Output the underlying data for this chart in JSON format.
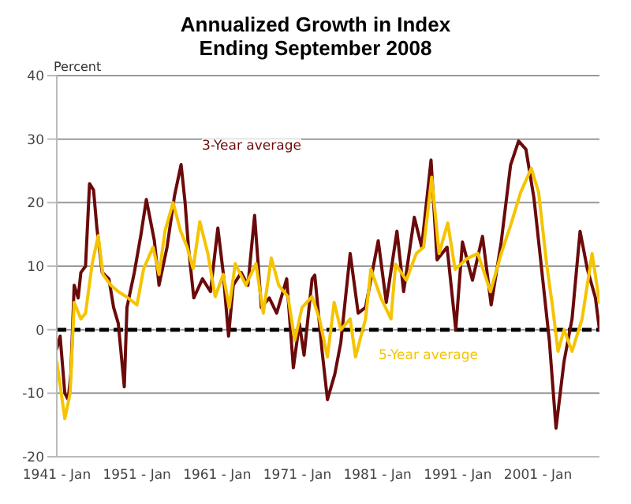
{
  "chart_data": {
    "type": "line",
    "title": "Annualized Growth in Index",
    "subtitle": "Ending September 2008",
    "ylabel": "Percent",
    "xlim": [
      "1941-01",
      "2008-09"
    ],
    "xticks": [
      {
        "value": "1941-01",
        "label": "1941 - Jan"
      },
      {
        "value": "1951-01",
        "label": "1951 - Jan"
      },
      {
        "value": "1961-01",
        "label": "1961 - Jan"
      },
      {
        "value": "1971-01",
        "label": "1971 - Jan"
      },
      {
        "value": "1981-01",
        "label": "1981 - Jan"
      },
      {
        "value": "1991-01",
        "label": "1991 - Jan"
      },
      {
        "value": "2001-01",
        "label": "2001 - Jan"
      }
    ],
    "ylim": [
      -20,
      40
    ],
    "yticks": [
      -20,
      -10,
      0,
      10,
      20,
      30,
      40
    ],
    "grid": "y",
    "legend": false,
    "marker": "none",
    "line_style": "solid",
    "ref_lines": [
      {
        "axis": "y",
        "value": 0,
        "color": "#000000",
        "line_style": "dashed"
      }
    ],
    "series": [
      {
        "name": "3-Year average",
        "color": "#6b0a0a",
        "x": [
          "1941-01",
          "1941-06",
          "1942-01",
          "1942-06",
          "1942-10",
          "1943-03",
          "1943-09",
          "1944-01",
          "1944-08",
          "1945-02",
          "1945-08",
          "1946-01",
          "1946-09",
          "1947-07",
          "1948-02",
          "1948-09",
          "1949-06",
          "1949-10",
          "1950-09",
          "1951-07",
          "1952-03",
          "1953-03",
          "1953-10",
          "1954-10",
          "1955-09",
          "1956-07",
          "1957-01",
          "1957-06",
          "1958-02",
          "1959-03",
          "1960-03",
          "1961-02",
          "1961-10",
          "1962-06",
          "1963-01",
          "1964-01",
          "1964-11",
          "1965-09",
          "1966-07",
          "1967-07",
          "1968-06",
          "1969-09",
          "1970-07",
          "1971-04",
          "1971-11",
          "1972-11",
          "1973-03",
          "1974-02",
          "1974-10",
          "1975-09",
          "1976-06",
          "1977-08",
          "1978-08",
          "1979-07",
          "1981-02",
          "1982-02",
          "1983-06",
          "1984-04",
          "1985-08",
          "1986-07",
          "1987-09",
          "1988-06",
          "1989-09",
          "1990-10",
          "1991-08",
          "1992-11",
          "1994-02",
          "1995-03",
          "1996-06",
          "1997-08",
          "1998-08",
          "1999-07",
          "2000-07",
          "2001-06",
          "2002-06",
          "2003-04",
          "2004-04",
          "2005-04",
          "2006-04",
          "2007-03",
          "2008-03",
          "2008-09"
        ],
        "values": [
          -3,
          -1,
          -10,
          -11,
          -7,
          7,
          5,
          9,
          10,
          23,
          22,
          16,
          9,
          8,
          3.5,
          1,
          -9,
          3.5,
          9,
          15,
          20.5,
          14,
          7,
          13,
          21,
          26,
          20,
          13,
          5,
          8,
          6,
          16,
          9,
          -1,
          7,
          9,
          7,
          18,
          3.5,
          5,
          2.6,
          8,
          -6,
          1,
          -4,
          8,
          8.6,
          -3.4,
          -11,
          -7,
          -2,
          12,
          2.6,
          3.5,
          14,
          4.3,
          15.5,
          6,
          17.7,
          13,
          26.7,
          11,
          13,
          0,
          13.8,
          7.8,
          14.7,
          3.9,
          13.8,
          25.9,
          29.7,
          28.4,
          20.7,
          10,
          -1.7,
          -15.5,
          -5,
          1.7,
          15.5,
          9.5,
          5,
          0
        ]
      },
      {
        "name": "5-Year average",
        "color": "#f5c400",
        "x": [
          "1941-01",
          "1942-01",
          "1942-09",
          "1943-03",
          "1944-01",
          "1944-08",
          "1945-06",
          "1946-03",
          "1946-10",
          "1947-10",
          "1948-09",
          "1949-09",
          "1951-01",
          "1951-11",
          "1953-01",
          "1953-10",
          "1954-07",
          "1955-07",
          "1956-06",
          "1957-04",
          "1958-01",
          "1958-11",
          "1959-11",
          "1960-10",
          "1961-10",
          "1962-07",
          "1963-04",
          "1964-08",
          "1965-11",
          "1966-10",
          "1967-10",
          "1968-09",
          "1969-11",
          "1970-09",
          "1971-08",
          "1972-11",
          "1973-10",
          "1974-10",
          "1975-08",
          "1976-06",
          "1977-08",
          "1978-04",
          "1979-07",
          "1980-03",
          "1981-06",
          "1982-09",
          "1983-04",
          "1984-08",
          "1985-11",
          "1986-10",
          "1987-10",
          "1988-09",
          "1989-10",
          "1990-09",
          "1992-03",
          "1993-07",
          "1995-02",
          "1996-06",
          "1997-08",
          "1998-11",
          "2000-03",
          "2001-02",
          "2002-02",
          "2002-11",
          "2003-07",
          "2004-04",
          "2005-04",
          "2006-07",
          "2007-10",
          "2008-09"
        ],
        "values": [
          -5,
          -14,
          -10,
          4.3,
          1.7,
          2.6,
          10.4,
          14.8,
          8.7,
          7,
          6,
          5.2,
          3.9,
          9.6,
          13,
          8.7,
          15.6,
          20,
          15.6,
          13,
          9.6,
          17,
          12,
          5.2,
          8.7,
          3.5,
          10.4,
          7,
          10.4,
          2.6,
          11.3,
          7,
          5.2,
          -1.7,
          3.5,
          5.2,
          1.7,
          -4.3,
          4.3,
          0,
          1.7,
          -4.3,
          1.7,
          9.5,
          5,
          1.7,
          10.3,
          7.8,
          12,
          13,
          24,
          12,
          16.8,
          9.5,
          11.2,
          12,
          6,
          12,
          16.4,
          21.6,
          25.4,
          21.6,
          10.3,
          3.5,
          -3.4,
          0,
          -3.4,
          1.7,
          12,
          4.3
        ]
      }
    ]
  }
}
